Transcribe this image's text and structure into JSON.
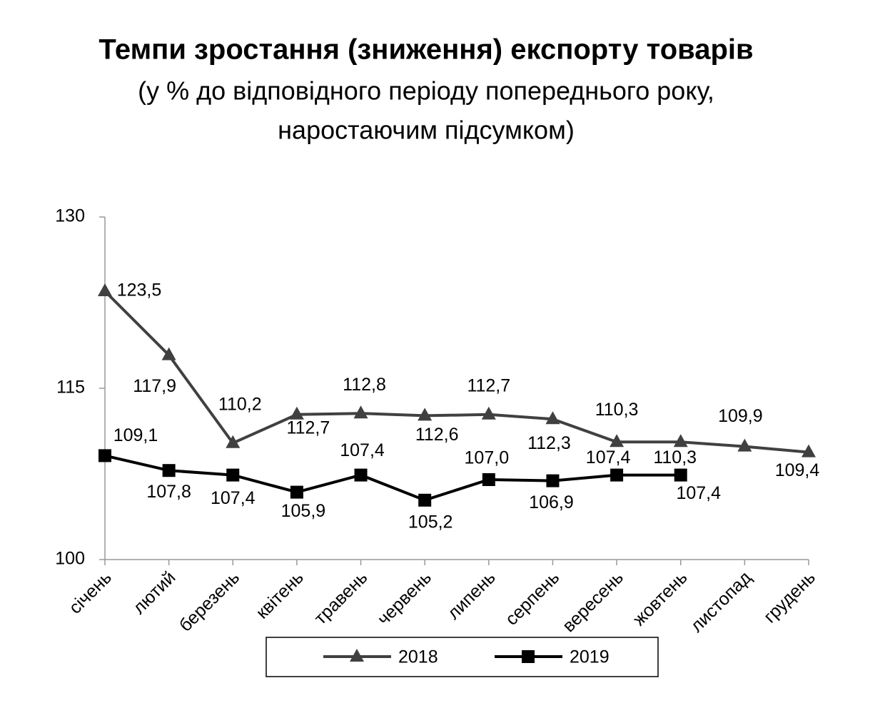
{
  "chart_data": {
    "type": "line",
    "title": "Темпи зростання (зниження) експорту товарів",
    "subtitle": [
      "(у % до відповідного періоду попереднього року,",
      "наростаючим підсумком)"
    ],
    "categories": [
      "січень",
      "лютий",
      "березень",
      "квітень",
      "травень",
      "червень",
      "липень",
      "серпень",
      "вересень",
      "жовтень",
      "листопад",
      "грудень"
    ],
    "series": [
      {
        "name": "2018",
        "color": "#404040",
        "marker": "triangle",
        "values": [
          123.5,
          117.9,
          110.2,
          112.7,
          112.8,
          112.6,
          112.7,
          112.3,
          110.3,
          110.3,
          109.9,
          109.4
        ],
        "value_labels": [
          "123,5",
          "117,9",
          "110,2",
          "112,7",
          "112,8",
          "112,6",
          "112,7",
          "112,3",
          "110,3",
          "110,3",
          "109,9",
          "109,4"
        ]
      },
      {
        "name": "2019",
        "color": "#000000",
        "marker": "square",
        "values": [
          109.1,
          107.8,
          107.4,
          105.9,
          107.4,
          105.2,
          107.0,
          106.9,
          107.4,
          107.4,
          null,
          null
        ],
        "value_labels": [
          "109,1",
          "107,8",
          "107,4",
          "105,9",
          "107,4",
          "105,2",
          "107,0",
          "106,9",
          "107,4",
          "107,4",
          null,
          null
        ]
      }
    ],
    "ylim": [
      100,
      130
    ],
    "yticks": [
      100,
      115,
      130
    ],
    "grid": false,
    "legend": "bottom"
  }
}
